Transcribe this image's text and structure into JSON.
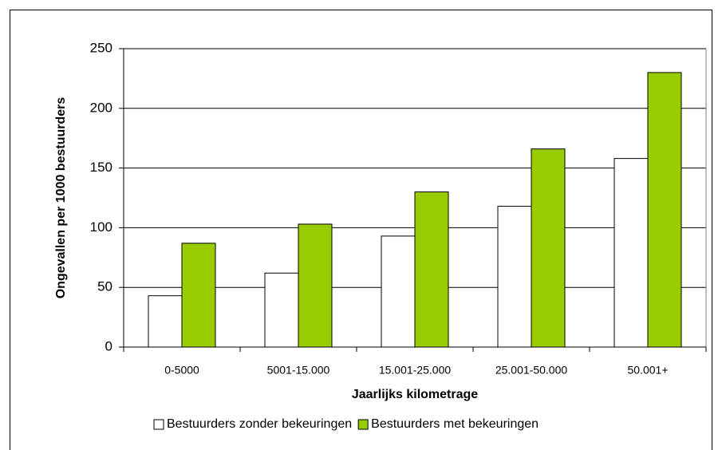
{
  "chart_data": {
    "type": "bar",
    "xlabel": "Jaarlijks kilometrage",
    "ylabel": "Ongevallen per 1000 bestuurders",
    "categories": [
      "0-5000",
      "5001-15.000",
      "15.001-25.000",
      "25.001-50.000",
      "50.001+"
    ],
    "series": [
      {
        "name": "Bestuurders zonder bekeuringen",
        "color": "#ffffff",
        "values": [
          43,
          62,
          93,
          118,
          158
        ]
      },
      {
        "name": "Bestuurders met bekeuringen",
        "color": "#99cc00",
        "values": [
          87,
          103,
          130,
          166,
          230
        ]
      }
    ],
    "ylim": [
      0,
      250
    ],
    "yticks": [
      0,
      50,
      100,
      150,
      200,
      250
    ],
    "grid": true,
    "legend": "bottom"
  }
}
